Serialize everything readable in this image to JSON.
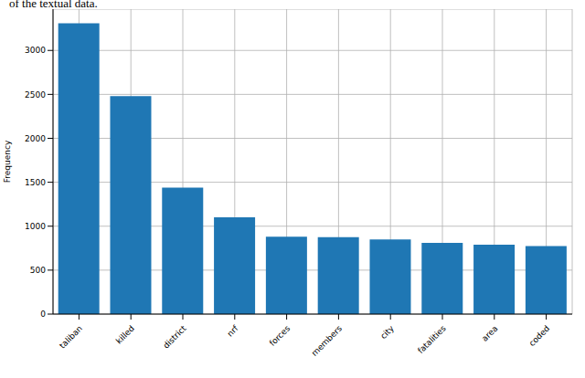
{
  "chart_data": {
    "type": "bar",
    "annotations": [
      "of the textual data."
    ],
    "y_label": "Frequency",
    "categories": [
      "taliban",
      "killed",
      "district",
      "nrf",
      "forces",
      "members",
      "city",
      "fatalities",
      "area",
      "coded"
    ],
    "values": [
      3310,
      2480,
      1440,
      1100,
      880,
      875,
      850,
      810,
      790,
      775
    ],
    "color": "#1f77b4",
    "ylim": [
      0,
      3470
    ],
    "yticks": [
      0,
      500,
      1000,
      1500,
      2000,
      2500,
      3000
    ],
    "grid": true
  }
}
